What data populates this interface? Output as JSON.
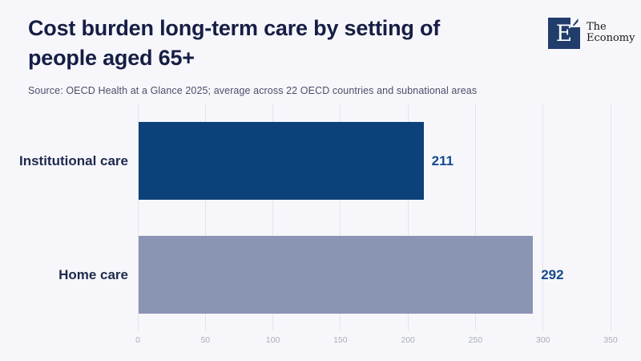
{
  "logo": {
    "monogram": "E",
    "line1": "The",
    "line2": "Economy"
  },
  "colors": {
    "background": "#f7f7fb",
    "title_text": "#171e45",
    "source_text": "#4a4f68",
    "category_label": "#1e2a4e",
    "value_label": "#164a8c",
    "gridline": "#e0e5ea",
    "tick_label": "#a9adbd",
    "logo_navy": "#203d6b",
    "bar_institutional": "#0c4279",
    "bar_home": "#8a94b3"
  },
  "chart_data": {
    "type": "bar",
    "orientation": "horizontal",
    "title": "Cost burden long-term care by setting of people aged 65+",
    "source": "Source: OECD Health at a Glance 2025; average across 22 OECD countries and subnational areas",
    "categories": [
      "Institutional care",
      "Home care"
    ],
    "values": [
      211,
      292
    ],
    "value_labels": [
      "211",
      "292"
    ],
    "bar_colors": [
      "#0c4279",
      "#8a94b3"
    ],
    "xlabel": "",
    "ylabel": "",
    "xlim": [
      0,
      350
    ],
    "xticks": [
      0,
      50,
      100,
      150,
      200,
      250,
      300,
      350
    ],
    "grid": true,
    "legend_position": "none"
  }
}
